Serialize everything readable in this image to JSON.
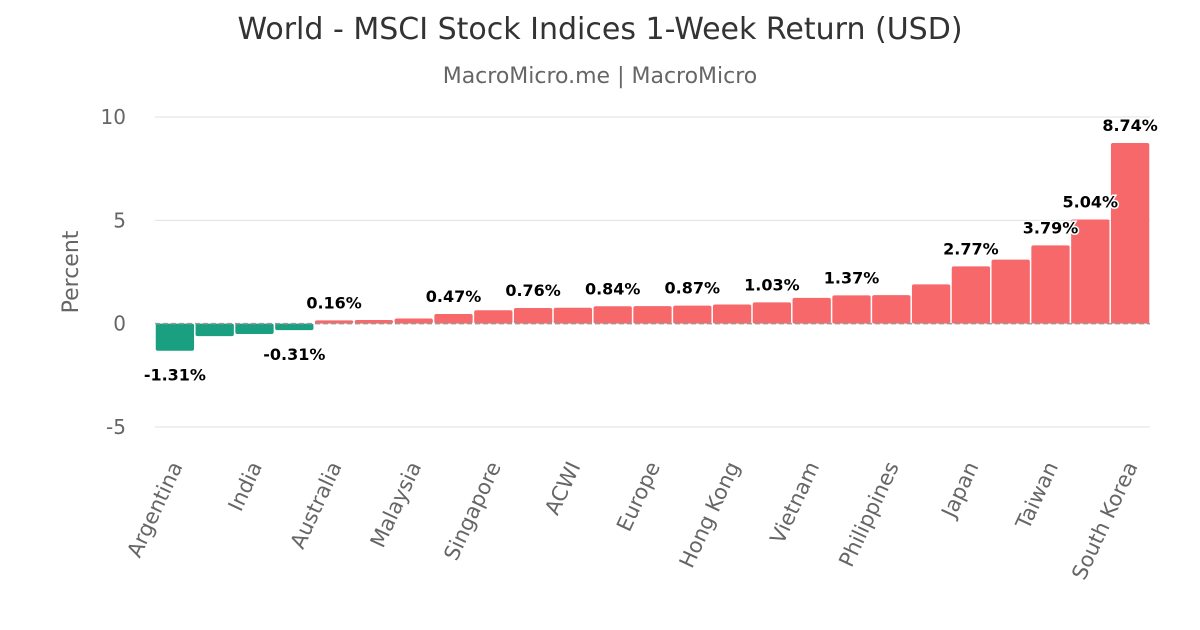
{
  "title": "World - MSCI Stock Indices 1-Week Return (USD)",
  "subtitle": "MacroMicro.me | MacroMicro",
  "colors": {
    "positive": "#f7686b",
    "negative": "#1a9f80",
    "grid": "#e0e0e0",
    "zero_line": "#999999"
  },
  "chart_data": {
    "type": "bar",
    "ylabel": "Percent",
    "ylim": [
      -5,
      10
    ],
    "yticks": [
      -5,
      0,
      5,
      10
    ],
    "categories": [
      "Argentina",
      "",
      "India",
      "",
      "Australia",
      "",
      "Malaysia",
      "",
      "Singapore",
      "",
      "ACWI",
      "",
      "Europe",
      "",
      "Hong Kong",
      "",
      "Vietnam",
      "",
      "Philippines",
      "",
      "Japan",
      "",
      "Taiwan",
      "",
      "South Korea"
    ],
    "values": [
      -1.31,
      -0.6,
      -0.5,
      -0.31,
      0.16,
      0.18,
      0.25,
      0.47,
      0.65,
      0.76,
      0.77,
      0.84,
      0.85,
      0.87,
      0.93,
      1.03,
      1.25,
      1.37,
      1.38,
      1.9,
      2.77,
      3.1,
      3.79,
      5.04,
      8.74
    ],
    "data_labels": [
      "-1.31%",
      "",
      "",
      "-0.31%",
      "0.16%",
      "",
      "",
      "0.47%",
      "",
      "0.76%",
      "",
      "0.84%",
      "",
      "0.87%",
      "",
      "1.03%",
      "",
      "1.37%",
      "",
      "",
      "2.77%",
      "",
      "3.79%",
      "5.04%",
      "8.74%"
    ],
    "grid": true,
    "legend": "none"
  }
}
